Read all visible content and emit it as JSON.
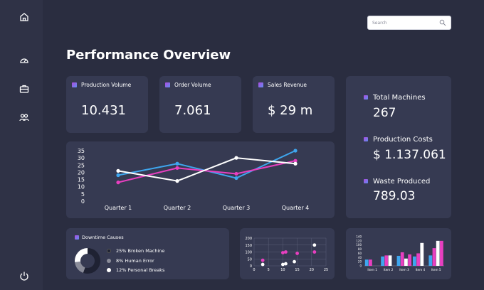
{
  "search": {
    "placeholder": "Search"
  },
  "page": {
    "title": "Performance Overview"
  },
  "kpis": [
    {
      "label": "Production Volume",
      "value": "10.431"
    },
    {
      "label": "Order Volume",
      "value": "7.061"
    },
    {
      "label": "Sales Revenue",
      "value": "$ 29 m"
    }
  ],
  "side_stats": [
    {
      "label": "Total Machines",
      "value": "267"
    },
    {
      "label": "Production Costs",
      "value": "$ 1.137.061"
    },
    {
      "label": "Waste Produced",
      "value": "789.03"
    }
  ],
  "downtime": {
    "title": "Downtime Causes",
    "items": [
      {
        "label": "25% Broken Machine",
        "color": "#1f2233"
      },
      {
        "label": "8% Human Error",
        "color": "#8a8c99"
      },
      {
        "label": "12% Personal Breaks",
        "color": "#ffffff"
      }
    ]
  },
  "colors": {
    "pink": "#e83fc0",
    "blue": "#3ea6ee",
    "white": "#ffffff",
    "card": "#363a52",
    "background": "#2a2d40",
    "sidebar": "#2f3246"
  },
  "icons": [
    "home-icon",
    "gauge-icon",
    "briefcase-icon",
    "people-icon",
    "power-icon",
    "search-icon"
  ],
  "chart_data": [
    {
      "type": "line",
      "categories": [
        "Quarter 1",
        "Quarter 2",
        "Quarter 3",
        "Quarter 4"
      ],
      "ylim": [
        0,
        35
      ],
      "yticks": [
        0,
        5,
        10,
        15,
        20,
        25,
        30,
        35
      ],
      "grid": false,
      "series": [
        {
          "color": "#3ea6ee",
          "values": [
            18,
            26,
            16,
            35
          ]
        },
        {
          "color": "#e83fc0",
          "values": [
            13,
            23,
            19,
            28
          ]
        },
        {
          "color": "#ffffff",
          "values": [
            21,
            14,
            30,
            26
          ]
        }
      ]
    },
    {
      "type": "pie",
      "style": "donut",
      "labels": [
        "25% Broken Machine",
        "8% Human Error",
        "12% Personal Breaks"
      ],
      "values": [
        25,
        8,
        12
      ],
      "colors": [
        "#1f2233",
        "#8a8c99",
        "#ffffff"
      ]
    },
    {
      "type": "scatter",
      "xlim": [
        0,
        25
      ],
      "ylim": [
        0,
        200
      ],
      "xticks": [
        0,
        5,
        10,
        15,
        20,
        25
      ],
      "yticks": [
        0,
        50,
        100,
        150,
        200
      ],
      "grid": true,
      "series": [
        {
          "color": "#e83fc0",
          "x": [
            3,
            10,
            11,
            15,
            21
          ],
          "y": [
            40,
            95,
            100,
            90,
            100
          ]
        },
        {
          "color": "#ffffff",
          "x": [
            3,
            10,
            11,
            14,
            21
          ],
          "y": [
            10,
            10,
            15,
            30,
            150
          ]
        }
      ]
    },
    {
      "type": "bar",
      "categories": [
        "Item 1",
        "Item 2",
        "Item 3",
        "Item 4",
        "Item 5"
      ],
      "ylim": [
        0,
        140
      ],
      "yticks": [
        0,
        20,
        40,
        60,
        80,
        100,
        120,
        140
      ],
      "grid": false,
      "series": [
        {
          "color": "#3ea6ee",
          "values": [
            30,
            45,
            48,
            45,
            50
          ]
        },
        {
          "color": "#e83fc0",
          "values": [
            30,
            50,
            65,
            60,
            85
          ]
        },
        {
          "color": "#ffffff",
          "values": [
            0,
            50,
            35,
            110,
            120
          ]
        },
        {
          "color": "#e83fc0",
          "values": [
            0,
            0,
            55,
            0,
            120
          ]
        }
      ]
    }
  ]
}
